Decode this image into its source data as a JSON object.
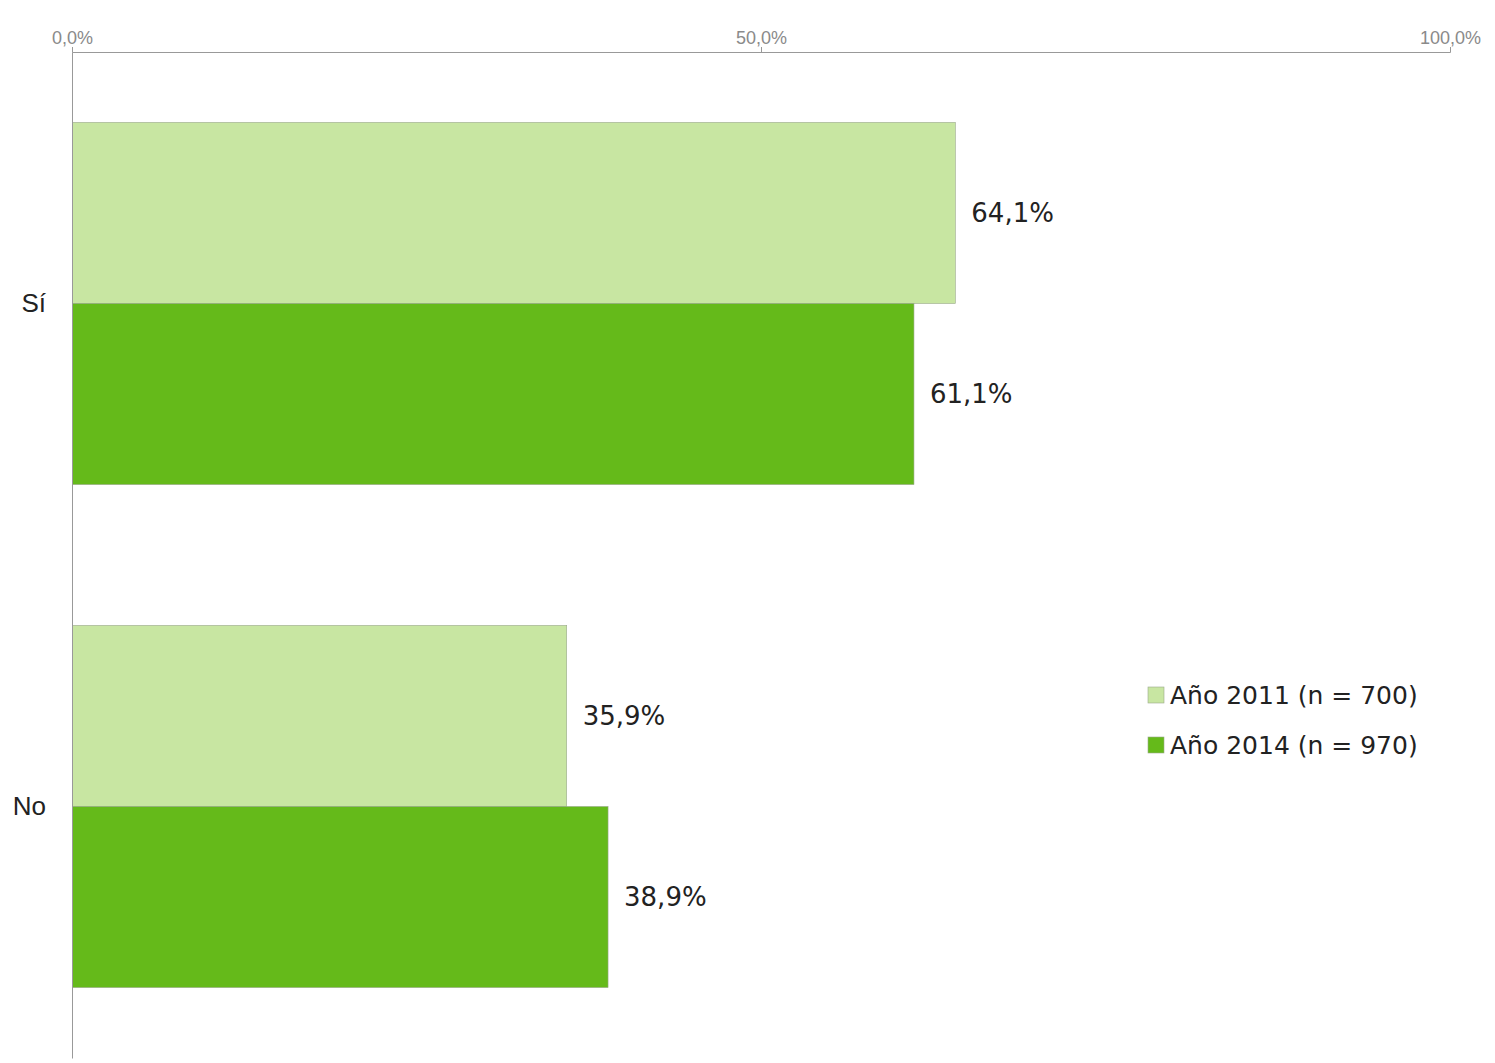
{
  "chart_data": {
    "type": "bar",
    "orientation": "horizontal",
    "categories": [
      "Sí",
      "No"
    ],
    "series": [
      {
        "name": "Año 2011 (n = 700)",
        "color": "#c8e6a2",
        "values": [
          64.1,
          35.9
        ],
        "value_labels": [
          "64,1%",
          "35,9%"
        ]
      },
      {
        "name": "Año 2014 (n = 970)",
        "color": "#65ba1a",
        "values": [
          61.1,
          38.9
        ],
        "value_labels": [
          "61,1%",
          "38,9%"
        ]
      }
    ],
    "xlim": [
      0,
      100
    ],
    "xticks": [
      {
        "value": 0,
        "label": "0,0%"
      },
      {
        "value": 50,
        "label": "50,0%"
      },
      {
        "value": 100,
        "label": "100,0%"
      }
    ],
    "data_labels": true,
    "legend": "right",
    "grid": false
  }
}
